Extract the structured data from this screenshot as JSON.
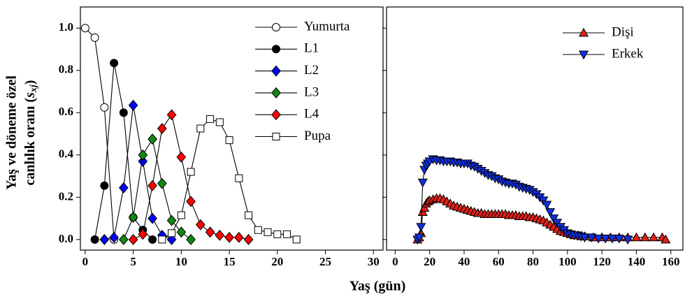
{
  "chart_data": [
    {
      "type": "line",
      "xlabel": "Yaş (gün)",
      "ylabel": [
        "Yaş ve döneme özel",
        "canlılık oranı (",
        "s",
        "xj",
        ")"
      ],
      "xlim": [
        -0.5,
        31
      ],
      "xticks": [
        0,
        5,
        10,
        15,
        20,
        25,
        30
      ],
      "ylim": [
        -0.05,
        1.1
      ],
      "yticks": [
        {
          "value": 0,
          "label": "0.0"
        },
        {
          "value": 0.2,
          "label": "0.2"
        },
        {
          "value": 0.4,
          "label": "0.4"
        },
        {
          "value": 0.6,
          "label": "0.6"
        },
        {
          "value": 0.8,
          "label": "0.8"
        },
        {
          "value": 1,
          "label": "1.0"
        }
      ],
      "legend": "upper right",
      "series": [
        {
          "name": "Yumurta",
          "marker": "circle",
          "color": "#ffffff",
          "x": [
            0,
            1,
            2,
            3
          ],
          "values": [
            1.0,
            0.955,
            0.625,
            0.0
          ]
        },
        {
          "name": "L1",
          "marker": "circle",
          "color": "#000000",
          "x": [
            1,
            2,
            3,
            4,
            5,
            6,
            7
          ],
          "values": [
            0.0,
            0.255,
            0.835,
            0.6,
            0.105,
            0.045,
            0.0
          ]
        },
        {
          "name": "L2",
          "marker": "diamond",
          "color": "#0000ff",
          "x": [
            2,
            3,
            4,
            5,
            6,
            7,
            8,
            9
          ],
          "values": [
            0.0,
            0.01,
            0.245,
            0.635,
            0.37,
            0.1,
            0.02,
            0.0
          ]
        },
        {
          "name": "L3",
          "marker": "diamond",
          "color": "#118811",
          "x": [
            4,
            5,
            6,
            7,
            8,
            9,
            10,
            11
          ],
          "values": [
            0.0,
            0.105,
            0.4,
            0.475,
            0.265,
            0.09,
            0.035,
            0.0
          ]
        },
        {
          "name": "L4",
          "marker": "diamond",
          "color": "#ff0000",
          "x": [
            5,
            6,
            7,
            8,
            9,
            10,
            11,
            12,
            13,
            14,
            15,
            16,
            17
          ],
          "values": [
            0.0,
            0.025,
            0.255,
            0.525,
            0.59,
            0.39,
            0.18,
            0.07,
            0.035,
            0.02,
            0.01,
            0.01,
            0.0
          ]
        },
        {
          "name": "Pupa",
          "marker": "square",
          "color": "#ffffff",
          "x": [
            8,
            9,
            10,
            11,
            12,
            13,
            14,
            15,
            16,
            17,
            18,
            19,
            20,
            21,
            22
          ],
          "values": [
            0.0,
            0.03,
            0.115,
            0.32,
            0.525,
            0.57,
            0.555,
            0.47,
            0.29,
            0.115,
            0.045,
            0.035,
            0.025,
            0.025,
            0.0
          ]
        }
      ]
    },
    {
      "type": "line",
      "xlim": [
        -5,
        167
      ],
      "xticks": [
        0,
        20,
        40,
        60,
        80,
        100,
        120,
        140,
        160
      ],
      "ylim": [
        -0.05,
        1.1
      ],
      "legend": "upper right",
      "series": [
        {
          "name": "Dişi",
          "marker": "triangle-up",
          "color": "#e0201a",
          "x": [
            13,
            14,
            15,
            16,
            17,
            18,
            19,
            20,
            22,
            24,
            26,
            28,
            30,
            32,
            34,
            36,
            38,
            40,
            42,
            44,
            46,
            48,
            50,
            52,
            54,
            56,
            58,
            60,
            62,
            64,
            66,
            68,
            70,
            72,
            74,
            76,
            78,
            80,
            82,
            84,
            86,
            88,
            90,
            92,
            94,
            96,
            98,
            100,
            102,
            104,
            106,
            108,
            110,
            115,
            120,
            125,
            130,
            135,
            140,
            145,
            150,
            155,
            157
          ],
          "values": [
            0.0,
            0.01,
            0.03,
            0.13,
            0.15,
            0.17,
            0.18,
            0.185,
            0.19,
            0.195,
            0.195,
            0.19,
            0.18,
            0.17,
            0.16,
            0.155,
            0.15,
            0.145,
            0.14,
            0.135,
            0.13,
            0.125,
            0.125,
            0.12,
            0.12,
            0.12,
            0.12,
            0.12,
            0.12,
            0.12,
            0.115,
            0.115,
            0.115,
            0.11,
            0.11,
            0.11,
            0.105,
            0.105,
            0.1,
            0.095,
            0.09,
            0.08,
            0.07,
            0.06,
            0.05,
            0.04,
            0.035,
            0.03,
            0.025,
            0.02,
            0.02,
            0.015,
            0.015,
            0.01,
            0.01,
            0.01,
            0.01,
            0.01,
            0.01,
            0.01,
            0.01,
            0.01,
            0.0
          ]
        },
        {
          "name": "Erkek",
          "marker": "triangle-down",
          "color": "#1030e0",
          "x": [
            13,
            14,
            15,
            16,
            17,
            18,
            19,
            20,
            22,
            24,
            26,
            28,
            30,
            32,
            34,
            36,
            38,
            40,
            42,
            44,
            46,
            48,
            50,
            52,
            54,
            56,
            58,
            60,
            62,
            64,
            66,
            68,
            70,
            72,
            74,
            76,
            78,
            80,
            82,
            84,
            86,
            88,
            90,
            92,
            94,
            96,
            98,
            100,
            102,
            104,
            106,
            108,
            110,
            114,
            118,
            122,
            126,
            130,
            135
          ],
          "values": [
            0.0,
            0.01,
            0.06,
            0.27,
            0.33,
            0.35,
            0.36,
            0.37,
            0.38,
            0.375,
            0.375,
            0.37,
            0.37,
            0.37,
            0.365,
            0.365,
            0.36,
            0.36,
            0.36,
            0.35,
            0.345,
            0.335,
            0.325,
            0.315,
            0.305,
            0.3,
            0.29,
            0.285,
            0.275,
            0.27,
            0.265,
            0.265,
            0.26,
            0.25,
            0.245,
            0.24,
            0.235,
            0.225,
            0.215,
            0.2,
            0.185,
            0.165,
            0.13,
            0.1,
            0.08,
            0.06,
            0.045,
            0.03,
            0.025,
            0.02,
            0.02,
            0.015,
            0.01,
            0.01,
            0.005,
            0.005,
            0.005,
            0.005,
            0.0
          ]
        }
      ]
    }
  ]
}
